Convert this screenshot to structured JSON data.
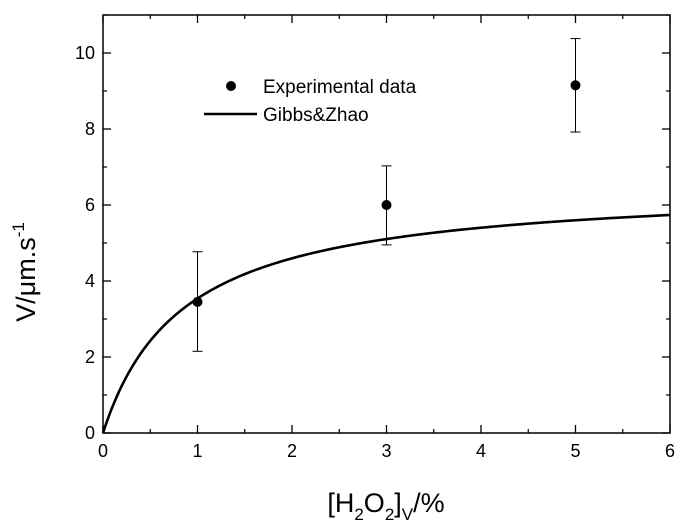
{
  "chart_data": {
    "type": "scatter",
    "title": "",
    "xlabel": {
      "pre": "[H",
      "sub1": "2",
      "mid": "O",
      "sub2": "2",
      "close": "]",
      "sub3": "V",
      "post": "/%"
    },
    "ylabel": {
      "base": "V/μm.s",
      "sup": "-1"
    },
    "xlim": [
      0,
      6
    ],
    "ylim": [
      0,
      11
    ],
    "xticks": [
      0,
      1,
      2,
      3,
      4,
      5,
      6
    ],
    "yticks": [
      0,
      2,
      4,
      6,
      8,
      10
    ],
    "grid": false,
    "legend_position": "top-left",
    "series": [
      {
        "name": "Experimental data",
        "kind": "points",
        "x": [
          1,
          3,
          5
        ],
        "y": [
          3.45,
          6.0,
          9.15
        ],
        "yerr_low": [
          2.15,
          4.95,
          7.92
        ],
        "yerr_high": [
          4.77,
          7.03,
          10.38
        ],
        "color": "#000000"
      },
      {
        "name": "Gibbs&Zhao",
        "kind": "line",
        "model": "y = 6.55 * x / (0.85 + x)",
        "color": "#000000"
      }
    ]
  }
}
